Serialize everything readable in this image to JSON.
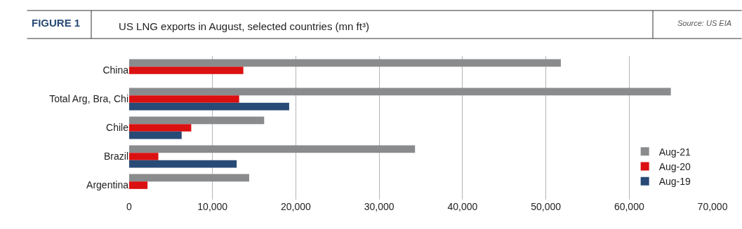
{
  "chart_data": {
    "type": "bar",
    "orientation": "horizontal",
    "title": "US LNG exports in August, selected countries (mn ft³)",
    "annotations": [
      "FIGURE 1",
      "Source: US EIA"
    ],
    "categories": [
      "China",
      "Total Arg, Bra, Chi",
      "Chile",
      "Brazil",
      "Argentina"
    ],
    "series": [
      {
        "name": "Aug-21",
        "color": "#8a8b8d",
        "values": [
          51800,
          65000,
          16200,
          34300,
          14400
        ]
      },
      {
        "name": "Aug-20",
        "color": "#db1010",
        "values": [
          13700,
          13200,
          7450,
          3500,
          2200
        ]
      },
      {
        "name": "Aug-19",
        "color": "#284a76",
        "values": [
          null,
          19200,
          6300,
          12900,
          null
        ]
      }
    ],
    "xlim": [
      0,
      70000
    ],
    "xticks": [
      {
        "value": 0,
        "label": "0"
      },
      {
        "value": 10000,
        "label": "10,000"
      },
      {
        "value": 20000,
        "label": "20,000"
      },
      {
        "value": 30000,
        "label": "30,000"
      },
      {
        "value": 40000,
        "label": "40,000"
      },
      {
        "value": 50000,
        "label": "50,000"
      },
      {
        "value": 60000,
        "label": "60,000"
      },
      {
        "value": 70000,
        "label": "70,000"
      }
    ],
    "grid": "x",
    "legend": "bottom right"
  }
}
